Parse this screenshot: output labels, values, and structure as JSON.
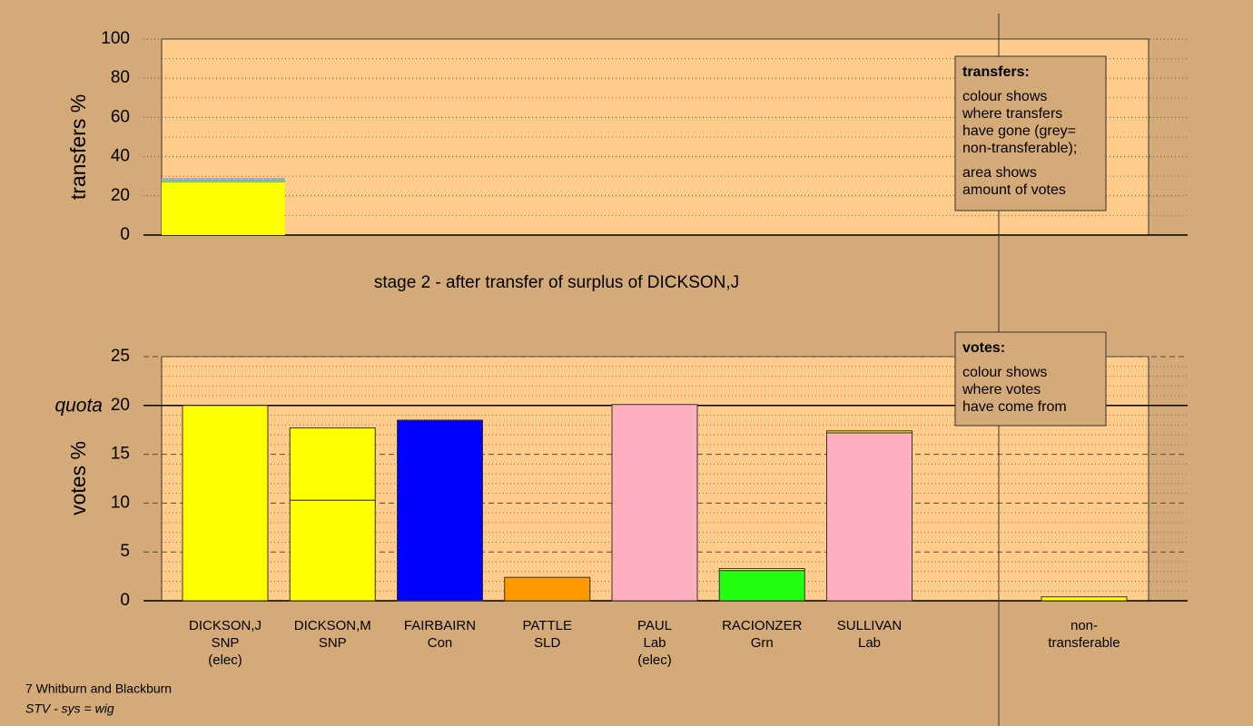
{
  "chart_data": [
    {
      "type": "stacked_bar",
      "ylabel": "transfers %",
      "ylim": [
        0,
        100
      ],
      "yticks": [
        0,
        20,
        40,
        60,
        80,
        100
      ],
      "minor_step": 10,
      "segments": [
        {
          "value": 26.8,
          "color": "#ffff00"
        },
        {
          "value": 0.9,
          "color": "#77cc44"
        },
        {
          "value": 1.4,
          "color": "#99aacc"
        }
      ],
      "legend": {
        "title": "transfers:",
        "paragraphs": [
          [
            "colour shows",
            "where transfers",
            "have gone (grey=",
            "non-transferable);"
          ],
          [
            "area shows",
            "amount of votes"
          ]
        ]
      },
      "subtitle": "stage 2 - after transfer of surplus of DICKSON,J"
    },
    {
      "type": "stacked_bar",
      "ylabel": "votes %",
      "ylim": [
        0,
        25
      ],
      "yticks": [
        0,
        5,
        10,
        15,
        20,
        25
      ],
      "minor_step": 1,
      "quota": 20,
      "quota_label": "quota",
      "categories": [
        [
          "DICKSON,J",
          "SNP",
          "(elec)"
        ],
        [
          "DICKSON,M",
          "SNP"
        ],
        [
          "FAIRBAIRN",
          "Con"
        ],
        [
          "PATTLE",
          "SLD"
        ],
        [
          "PAUL",
          "Lab",
          "(elec)"
        ],
        [
          "RACIONZER",
          "Grn"
        ],
        [
          "SULLIVAN",
          "Lab"
        ],
        null,
        [
          "non-",
          "transferable"
        ]
      ],
      "stacks": [
        [
          {
            "value": 20.0,
            "color": "#ffff00"
          }
        ],
        [
          {
            "value": 10.3,
            "color": "#ffff00"
          },
          {
            "value": 7.4,
            "color": "#ffff00"
          }
        ],
        [
          {
            "value": 18.5,
            "color": "#0000ff"
          }
        ],
        [
          {
            "value": 2.4,
            "color": "#ff9900"
          }
        ],
        [
          {
            "value": 20.1,
            "color": "#ffb0c0"
          }
        ],
        [
          {
            "value": 3.1,
            "color": "#22ff11"
          },
          {
            "value": 0.2,
            "color": "#ffff00"
          }
        ],
        [
          {
            "value": 17.2,
            "color": "#ffb0c0"
          },
          {
            "value": 0.2,
            "color": "#ffff00"
          }
        ],
        [],
        [
          {
            "value": 0.4,
            "color": "#ffff00"
          }
        ]
      ],
      "legend": {
        "title": "votes:",
        "paragraphs": [
          [
            "colour shows",
            "where votes",
            "have come from"
          ]
        ]
      }
    }
  ],
  "footer": {
    "area": "7 Whitburn and Blackburn",
    "system": "STV - sys = wig"
  }
}
